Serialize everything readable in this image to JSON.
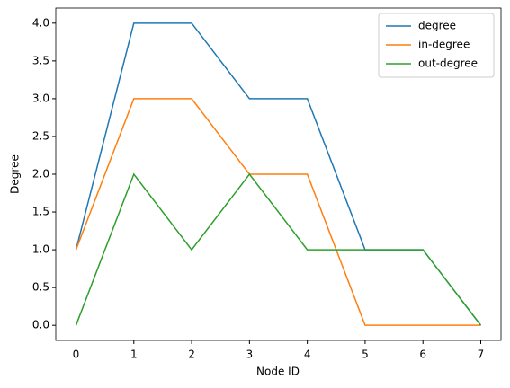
{
  "chart_data": {
    "type": "line",
    "x": [
      0,
      1,
      2,
      3,
      4,
      5,
      6,
      7
    ],
    "series": [
      {
        "name": "degree",
        "color": "#1f77b4",
        "values": [
          1,
          4,
          4,
          3,
          3,
          1,
          1,
          0
        ]
      },
      {
        "name": "in-degree",
        "color": "#ff7f0e",
        "values": [
          1,
          3,
          3,
          2,
          2,
          0,
          0,
          0
        ]
      },
      {
        "name": "out-degree",
        "color": "#2ca02c",
        "values": [
          0,
          2,
          1,
          2,
          1,
          1,
          1,
          0
        ]
      }
    ],
    "x_label": "Node ID",
    "y_label": "Degree",
    "xlim": [
      -0.35,
      7.35
    ],
    "ylim": [
      -0.2,
      4.2
    ],
    "xticks": [
      0,
      1,
      2,
      3,
      4,
      5,
      6,
      7
    ],
    "yticks": [
      {
        "value": 0,
        "label": "0.0"
      },
      {
        "value": 0.5,
        "label": "0.5"
      },
      {
        "value": 1,
        "label": "1.0"
      },
      {
        "value": 1.5,
        "label": "1.5"
      },
      {
        "value": 2,
        "label": "2.0"
      },
      {
        "value": 2.5,
        "label": "2.5"
      },
      {
        "value": 3,
        "label": "3.0"
      },
      {
        "value": 3.5,
        "label": "3.5"
      },
      {
        "value": 4,
        "label": "4.0"
      }
    ],
    "legend": "upper right"
  }
}
